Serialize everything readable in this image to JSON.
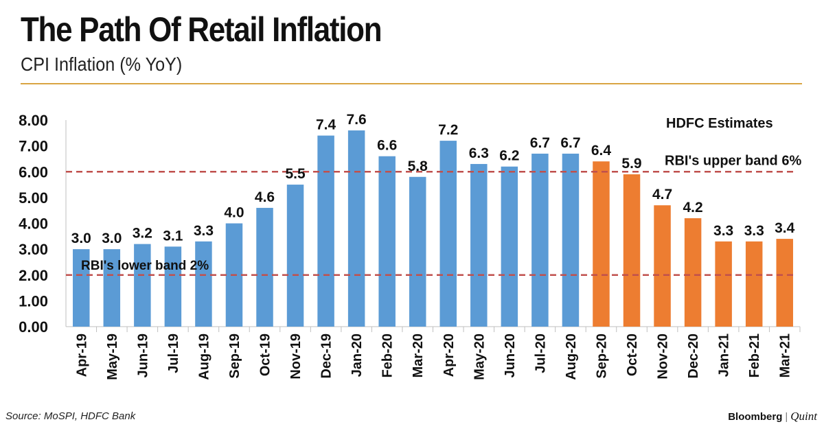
{
  "header": {
    "title": "The Path Of Retail Inflation",
    "subtitle": "CPI Inflation (% YoY)"
  },
  "footer": {
    "source": "Source: MoSPI, HDFC Bank",
    "brand_left": "Bloomberg",
    "brand_separator": "|",
    "brand_right": "Quint"
  },
  "colors": {
    "actual": "#5b9bd5",
    "estimate": "#ed7d31",
    "band_line": "#c0504d"
  },
  "chart_data": {
    "type": "bar",
    "title": "The Path Of Retail Inflation",
    "subtitle": "CPI Inflation (% YoY)",
    "xlabel": "",
    "ylabel": "",
    "ylim": [
      0,
      8
    ],
    "yticks": [
      "0.00",
      "1.00",
      "2.00",
      "3.00",
      "4.00",
      "5.00",
      "6.00",
      "7.00",
      "8.00"
    ],
    "grid": false,
    "categories": [
      "Apr-19",
      "May-19",
      "Jun-19",
      "Jul-19",
      "Aug-19",
      "Sep-19",
      "Oct-19",
      "Nov-19",
      "Dec-19",
      "Jan-20",
      "Feb-20",
      "Mar-20",
      "Apr-20",
      "May-20",
      "Jun-20",
      "Jul-20",
      "Aug-20",
      "Sep-20",
      "Oct-20",
      "Nov-20",
      "Dec-20",
      "Jan-21",
      "Feb-21",
      "Mar-21"
    ],
    "values": [
      3.0,
      3.0,
      3.2,
      3.1,
      3.3,
      4.0,
      4.6,
      5.5,
      7.4,
      7.6,
      6.6,
      5.8,
      7.2,
      6.3,
      6.2,
      6.7,
      6.7,
      6.4,
      5.9,
      4.7,
      4.2,
      3.3,
      3.3,
      3.4
    ],
    "data_labels": [
      "3.0",
      "3.0",
      "3.2",
      "3.1",
      "3.3",
      "4.0",
      "4.6",
      "5.5",
      "7.4",
      "7.6",
      "6.6",
      "5.8",
      "7.2",
      "6.3",
      "6.2",
      "6.7",
      "6.7",
      "6.4",
      "5.9",
      "4.7",
      "4.2",
      "3.3",
      "3.3",
      "3.4"
    ],
    "estimate_start_index": 17,
    "reference_lines": [
      {
        "value": 6,
        "label": "RBI's upper band 6%"
      },
      {
        "value": 2,
        "label": "RBI's lower band 2%"
      }
    ],
    "annotations": [
      "HDFC Estimates"
    ]
  }
}
